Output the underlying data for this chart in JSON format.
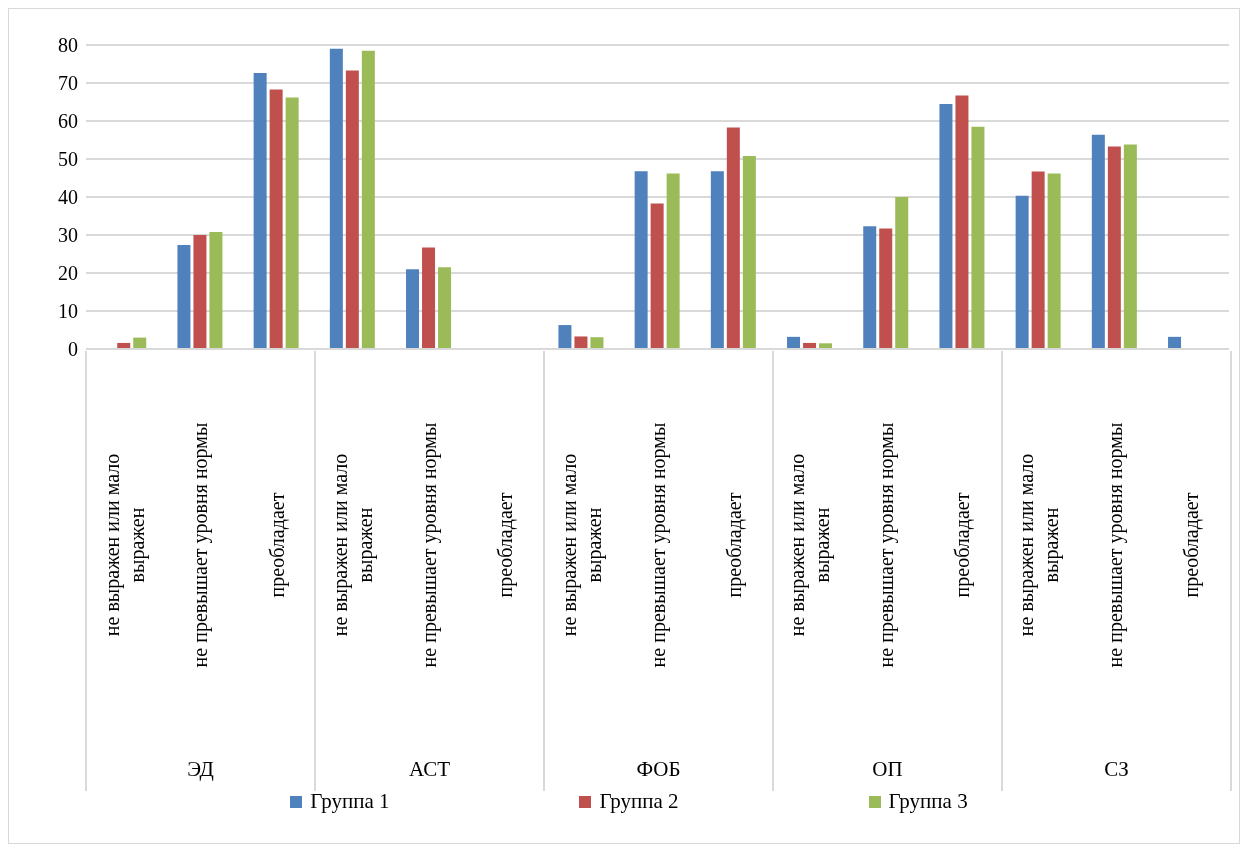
{
  "chart_data": {
    "type": "bar",
    "categories": [
      "не выражен или мало выражен",
      "не превышает уровня нормы",
      "преобладает",
      "не выражен или мало выражен",
      "не превышает уровня нормы",
      "преобладает",
      "не выражен или мало выражен",
      "не превышает уровня нормы",
      "преобладает",
      "не выражен или мало выражен",
      "не превышает уровня нормы",
      "преобладает",
      "не выражен или мало выражен",
      "не превышает уровня нормы",
      "преобладает"
    ],
    "series": [
      {
        "name": "Группа 1",
        "color": "#4f81bd",
        "values": [
          0,
          27.4,
          72.6,
          79,
          21,
          0,
          6.3,
          46.8,
          46.8,
          3.2,
          32.3,
          64.5,
          40.3,
          56.4,
          3.2
        ]
      },
      {
        "name": "Группа 2",
        "color": "#c0504d",
        "values": [
          1.6,
          30,
          68.3,
          73.3,
          26.7,
          0,
          3.3,
          38.3,
          58.3,
          1.6,
          31.7,
          66.7,
          46.7,
          53.3,
          0
        ]
      },
      {
        "name": "Группа 3",
        "color": "#9bbb59",
        "values": [
          3,
          30.8,
          66.2,
          78.5,
          21.5,
          0,
          3.1,
          46.2,
          50.8,
          1.5,
          40,
          58.5,
          46.2,
          53.8,
          0
        ]
      }
    ],
    "annotations": [
      "ЭД",
      "АСТ",
      "ФОБ",
      "ОП",
      "СЗ"
    ],
    "ylim": [
      0,
      80
    ],
    "yticks": [
      0,
      10,
      20,
      30,
      40,
      50,
      60,
      70,
      80
    ],
    "grid": "y",
    "legend": "bottom"
  }
}
